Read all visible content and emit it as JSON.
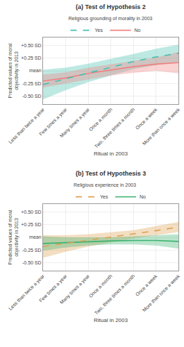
{
  "chart_data": [
    {
      "type": "line",
      "title": "(a) Test of Hypothesis 2",
      "legend_title": "Religious grounding of morality in 2003",
      "x_label": "Ritual in 2003",
      "y_label": "Predicted values of moral\nobjectivity in 2013",
      "categories": [
        "Less than twice a year",
        "Few times a year",
        "Many times a year",
        "Once a month",
        "Two, three times a month",
        "Once a week",
        "More than once a week"
      ],
      "series": [
        {
          "name": "No",
          "color": "#F08080",
          "line_style": "solid",
          "values": [
            -0.2,
            -0.14,
            -0.05,
            0.02,
            0.08,
            0.13,
            0.16
          ],
          "ci_low": [
            -0.33,
            -0.25,
            -0.16,
            -0.09,
            -0.04,
            0.0,
            -0.05
          ],
          "ci_high": [
            -0.07,
            -0.03,
            0.06,
            0.13,
            0.2,
            0.26,
            0.37
          ]
        },
        {
          "name": "Yes",
          "color": "#45BFB0",
          "line_style": "dashed",
          "values": [
            -0.27,
            -0.16,
            -0.04,
            0.07,
            0.18,
            0.27,
            0.34
          ],
          "ci_low": [
            -0.56,
            -0.38,
            -0.22,
            -0.09,
            0.03,
            0.11,
            0.17
          ],
          "ci_high": [
            0.02,
            0.06,
            0.14,
            0.23,
            0.33,
            0.43,
            0.51
          ]
        }
      ],
      "ylim": [
        -0.65,
        0.65
      ],
      "yticks": [
        {
          "value": -0.5,
          "label": "-0.50 SD"
        },
        {
          "value": -0.25,
          "label": "-0.25 SD"
        },
        {
          "value": 0.0,
          "label": "mean"
        },
        {
          "value": 0.25,
          "label": "+0.25 SD"
        },
        {
          "value": 0.5,
          "label": "+0.50 SD"
        }
      ],
      "grid": true,
      "legend": "top"
    },
    {
      "type": "line",
      "title": "(b) Test of Hypothesis 3",
      "legend_title": "Religious experience in 2003",
      "x_label": "Ritual in 2003",
      "y_label": "Predicted values of moral\nobjectivity in 2013",
      "categories": [
        "Less than twice a year",
        "Few times a year",
        "Many times a year",
        "Once a month",
        "Two, three times a month",
        "Once a week",
        "More than once a week"
      ],
      "series": [
        {
          "name": "No",
          "color": "#3CB371",
          "line_style": "solid",
          "values": [
            -0.12,
            -0.1,
            -0.08,
            -0.07,
            -0.06,
            -0.06,
            -0.08
          ],
          "ci_low": [
            -0.26,
            -0.2,
            -0.16,
            -0.14,
            -0.14,
            -0.16,
            -0.22
          ],
          "ci_high": [
            0.02,
            0.0,
            0.0,
            0.0,
            0.02,
            0.04,
            0.06
          ]
        },
        {
          "name": "Yes",
          "color": "#DDA050",
          "line_style": "dashed",
          "values": [
            -0.18,
            -0.12,
            -0.06,
            0.0,
            0.06,
            0.13,
            0.2
          ],
          "ci_low": [
            -0.4,
            -0.28,
            -0.18,
            -0.1,
            -0.02,
            0.04,
            0.1
          ],
          "ci_high": [
            0.04,
            0.04,
            0.06,
            0.1,
            0.14,
            0.22,
            0.3
          ]
        }
      ],
      "ylim": [
        -0.65,
        0.65
      ],
      "yticks": [
        {
          "value": -0.5,
          "label": "-0.50 SD"
        },
        {
          "value": -0.25,
          "label": "-0.25 SD"
        },
        {
          "value": 0.0,
          "label": "mean"
        },
        {
          "value": 0.25,
          "label": "+0.25 SD"
        },
        {
          "value": 0.5,
          "label": "+0.50 SD"
        }
      ],
      "grid": true,
      "legend": "top"
    }
  ]
}
